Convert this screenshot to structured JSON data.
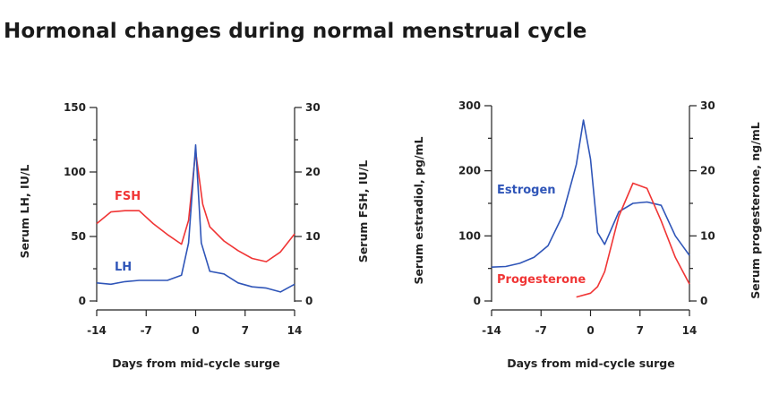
{
  "title": "Hormonal changes during normal menstrual cycle",
  "colors": {
    "red": "#f03535",
    "blue": "#2f55b8",
    "axis": "#222222"
  },
  "chart_data": [
    {
      "type": "line",
      "xlabel": "Days from mid-cycle surge",
      "ylabel_left": "Serum LH, IU/L",
      "ylabel_right": "Serum FSH, IU/L",
      "xlim": [
        -14,
        14
      ],
      "ylim_left": [
        0,
        150
      ],
      "ylim_right": [
        0,
        30
      ],
      "xticks": [
        "-14",
        "-7",
        "0",
        "7",
        "14"
      ],
      "xtick_values": [
        -14,
        -7,
        0,
        7,
        14
      ],
      "yticks_left": [
        "0",
        "50",
        "100",
        "150"
      ],
      "yticks_left_values": [
        0,
        50,
        100,
        150
      ],
      "yticks_right": [
        "0",
        "10",
        "20",
        "30"
      ],
      "yticks_right_values": [
        0,
        10,
        20,
        30
      ],
      "series": [
        {
          "name": "FSH",
          "axis": "right",
          "color": "#f03535",
          "x": [
            -14,
            -12,
            -10,
            -8,
            -6,
            -4,
            -2,
            -1,
            0,
            1,
            2,
            4,
            6,
            8,
            10,
            12,
            14
          ],
          "y": [
            12,
            13.8,
            14,
            14,
            12,
            10.3,
            8.8,
            12.5,
            23.2,
            15,
            11.5,
            9.3,
            7.8,
            6.6,
            6.1,
            7.6,
            10.4
          ]
        },
        {
          "name": "LH",
          "axis": "left",
          "color": "#2f55b8",
          "x": [
            -14,
            -12,
            -10,
            -8,
            -6,
            -4,
            -2,
            -1,
            0,
            0.8,
            2,
            4,
            6,
            8,
            10,
            12,
            14
          ],
          "y": [
            14,
            13,
            15,
            16,
            16,
            16,
            20,
            45,
            121,
            45,
            23,
            21,
            14,
            11,
            10,
            7,
            13
          ]
        }
      ]
    },
    {
      "type": "line",
      "xlabel": "Days from mid-cycle surge",
      "ylabel_left": "Serum estradiol, pg/mL",
      "ylabel_right": "Serum progesterone, ng/mL",
      "xlim": [
        -14,
        14
      ],
      "ylim_left": [
        0,
        300
      ],
      "ylim_right": [
        0,
        30
      ],
      "xticks": [
        "-14",
        "-7",
        "0",
        "7",
        "14"
      ],
      "xtick_values": [
        -14,
        -7,
        0,
        7,
        14
      ],
      "yticks_left": [
        "0",
        "100",
        "200",
        "300"
      ],
      "yticks_left_values": [
        0,
        100,
        200,
        300
      ],
      "yticks_right": [
        "0",
        "10",
        "20",
        "30"
      ],
      "yticks_right_values": [
        0,
        10,
        20,
        30
      ],
      "series": [
        {
          "name": "Estrogen",
          "axis": "left",
          "color": "#2f55b8",
          "x": [
            -14,
            -12,
            -10,
            -8,
            -6,
            -4,
            -2,
            -1,
            0,
            1,
            2,
            4,
            6,
            8,
            10,
            12,
            14
          ],
          "y": [
            52,
            53,
            58,
            67,
            85,
            130,
            210,
            278,
            218,
            105,
            87,
            137,
            150,
            152,
            147,
            100,
            70
          ]
        },
        {
          "name": "Progesterone",
          "axis": "right",
          "color": "#f03535",
          "x": [
            -2,
            0,
            1,
            2,
            4,
            6,
            8,
            10,
            12,
            14
          ],
          "y": [
            0.6,
            1.2,
            2.2,
            4.5,
            13,
            18.1,
            17.3,
            12.3,
            6.7,
            2.6
          ]
        }
      ]
    }
  ]
}
